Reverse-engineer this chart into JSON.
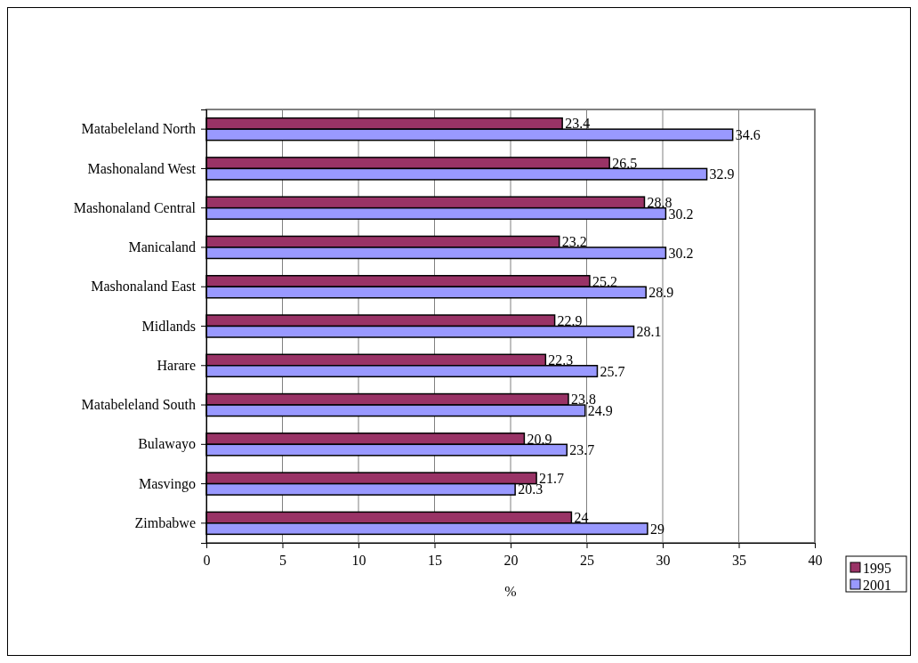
{
  "chart_data": {
    "type": "bar",
    "orientation": "horizontal",
    "xlabel": "%",
    "categories": [
      "Matabeleland North",
      "Mashonaland West",
      "Mashonaland Central",
      "Manicaland",
      "Mashonaland East",
      "Midlands",
      "Harare",
      "Matabeleland South",
      "Bulawayo",
      "Masvingo",
      "Zimbabwe"
    ],
    "series": [
      {
        "name": "1995",
        "color": "#993366",
        "values": [
          23.4,
          26.5,
          28.8,
          23.2,
          25.2,
          22.9,
          22.3,
          23.8,
          20.9,
          21.7,
          24
        ]
      },
      {
        "name": "2001",
        "color": "#9999ff",
        "values": [
          34.6,
          32.9,
          30.2,
          30.2,
          28.9,
          28.1,
          25.7,
          24.9,
          23.7,
          20.3,
          29
        ]
      }
    ],
    "xlim": [
      0,
      40
    ],
    "xticks": [
      0,
      5,
      10,
      15,
      20,
      25,
      30,
      35,
      40
    ],
    "grid": "x",
    "legend": "bottom right",
    "data_labels": true
  }
}
